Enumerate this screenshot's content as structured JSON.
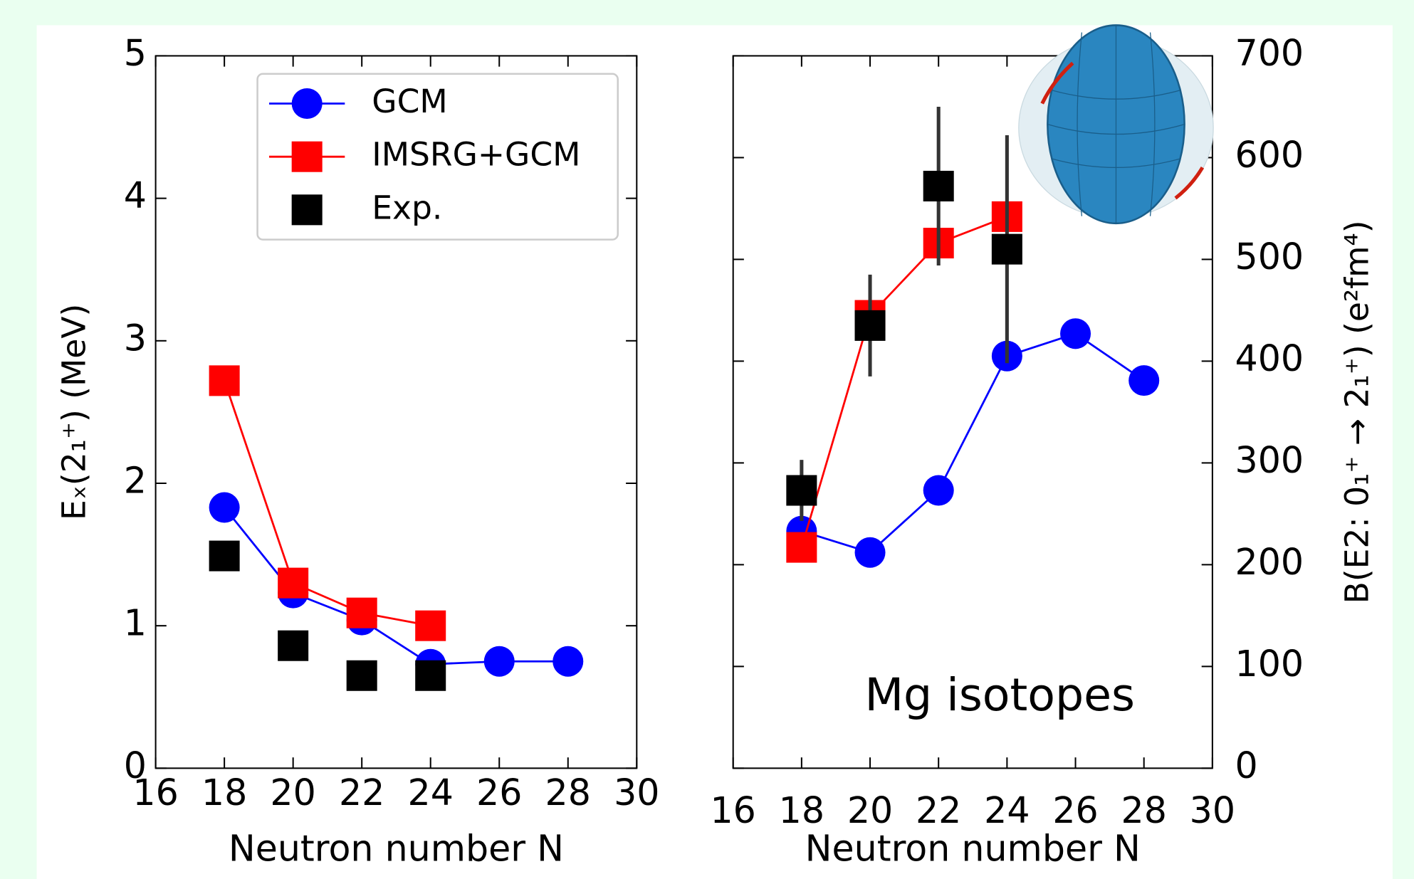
{
  "chart_data": [
    {
      "type": "line",
      "xlabel": "Neutron number N",
      "ylabel": "Eₓ(2₁⁺) (MeV)",
      "x": [
        18,
        20,
        22,
        24,
        26,
        28
      ],
      "series": [
        {
          "name": "GCM",
          "color": "#0000ff",
          "marker": "circle",
          "line": true,
          "values": [
            1.83,
            1.23,
            1.04,
            0.73,
            0.75,
            0.75
          ]
        },
        {
          "name": "IMSRG+GCM",
          "color": "#ff0000",
          "marker": "square",
          "line": true,
          "values": [
            2.72,
            1.3,
            1.09,
            1.0,
            null,
            null
          ]
        },
        {
          "name": "Exp.",
          "color": "#000000",
          "marker": "square",
          "line": false,
          "values": [
            1.49,
            0.86,
            0.65,
            0.65,
            null,
            null
          ]
        }
      ],
      "xlim": [
        16,
        30
      ],
      "xticks": [
        16,
        18,
        20,
        22,
        24,
        26,
        28,
        30
      ],
      "ylim": [
        0,
        5
      ],
      "yticks": [
        0,
        1,
        2,
        3,
        4,
        5
      ],
      "yaxis": "left",
      "legend": "upper right"
    },
    {
      "type": "line",
      "xlabel": "Neutron number N",
      "ylabel": "B(E2: 0₁⁺ → 2₁⁺) (e²fm⁴)",
      "annotation": "Mg isotopes",
      "x": [
        18,
        20,
        22,
        24,
        26,
        28
      ],
      "series": [
        {
          "name": "GCM",
          "color": "#0000ff",
          "marker": "circle",
          "line": true,
          "values": [
            233,
            212,
            273,
            405,
            427,
            381
          ]
        },
        {
          "name": "IMSRG+GCM",
          "color": "#ff0000",
          "marker": "square",
          "line": true,
          "values": [
            217,
            445,
            516,
            542,
            null,
            null
          ]
        },
        {
          "name": "Exp.",
          "color": "#000000",
          "marker": "square",
          "line": false,
          "values": [
            273,
            435,
            572,
            510,
            null,
            null
          ],
          "errors": [
            30,
            50,
            78,
            112,
            null,
            null
          ]
        }
      ],
      "xlim": [
        16,
        30
      ],
      "xticks": [
        16,
        18,
        20,
        22,
        24,
        26,
        28,
        30
      ],
      "ylim": [
        0,
        700
      ],
      "yticks": [
        0,
        100,
        200,
        300,
        400,
        500,
        600,
        700
      ],
      "yaxis": "right"
    }
  ]
}
